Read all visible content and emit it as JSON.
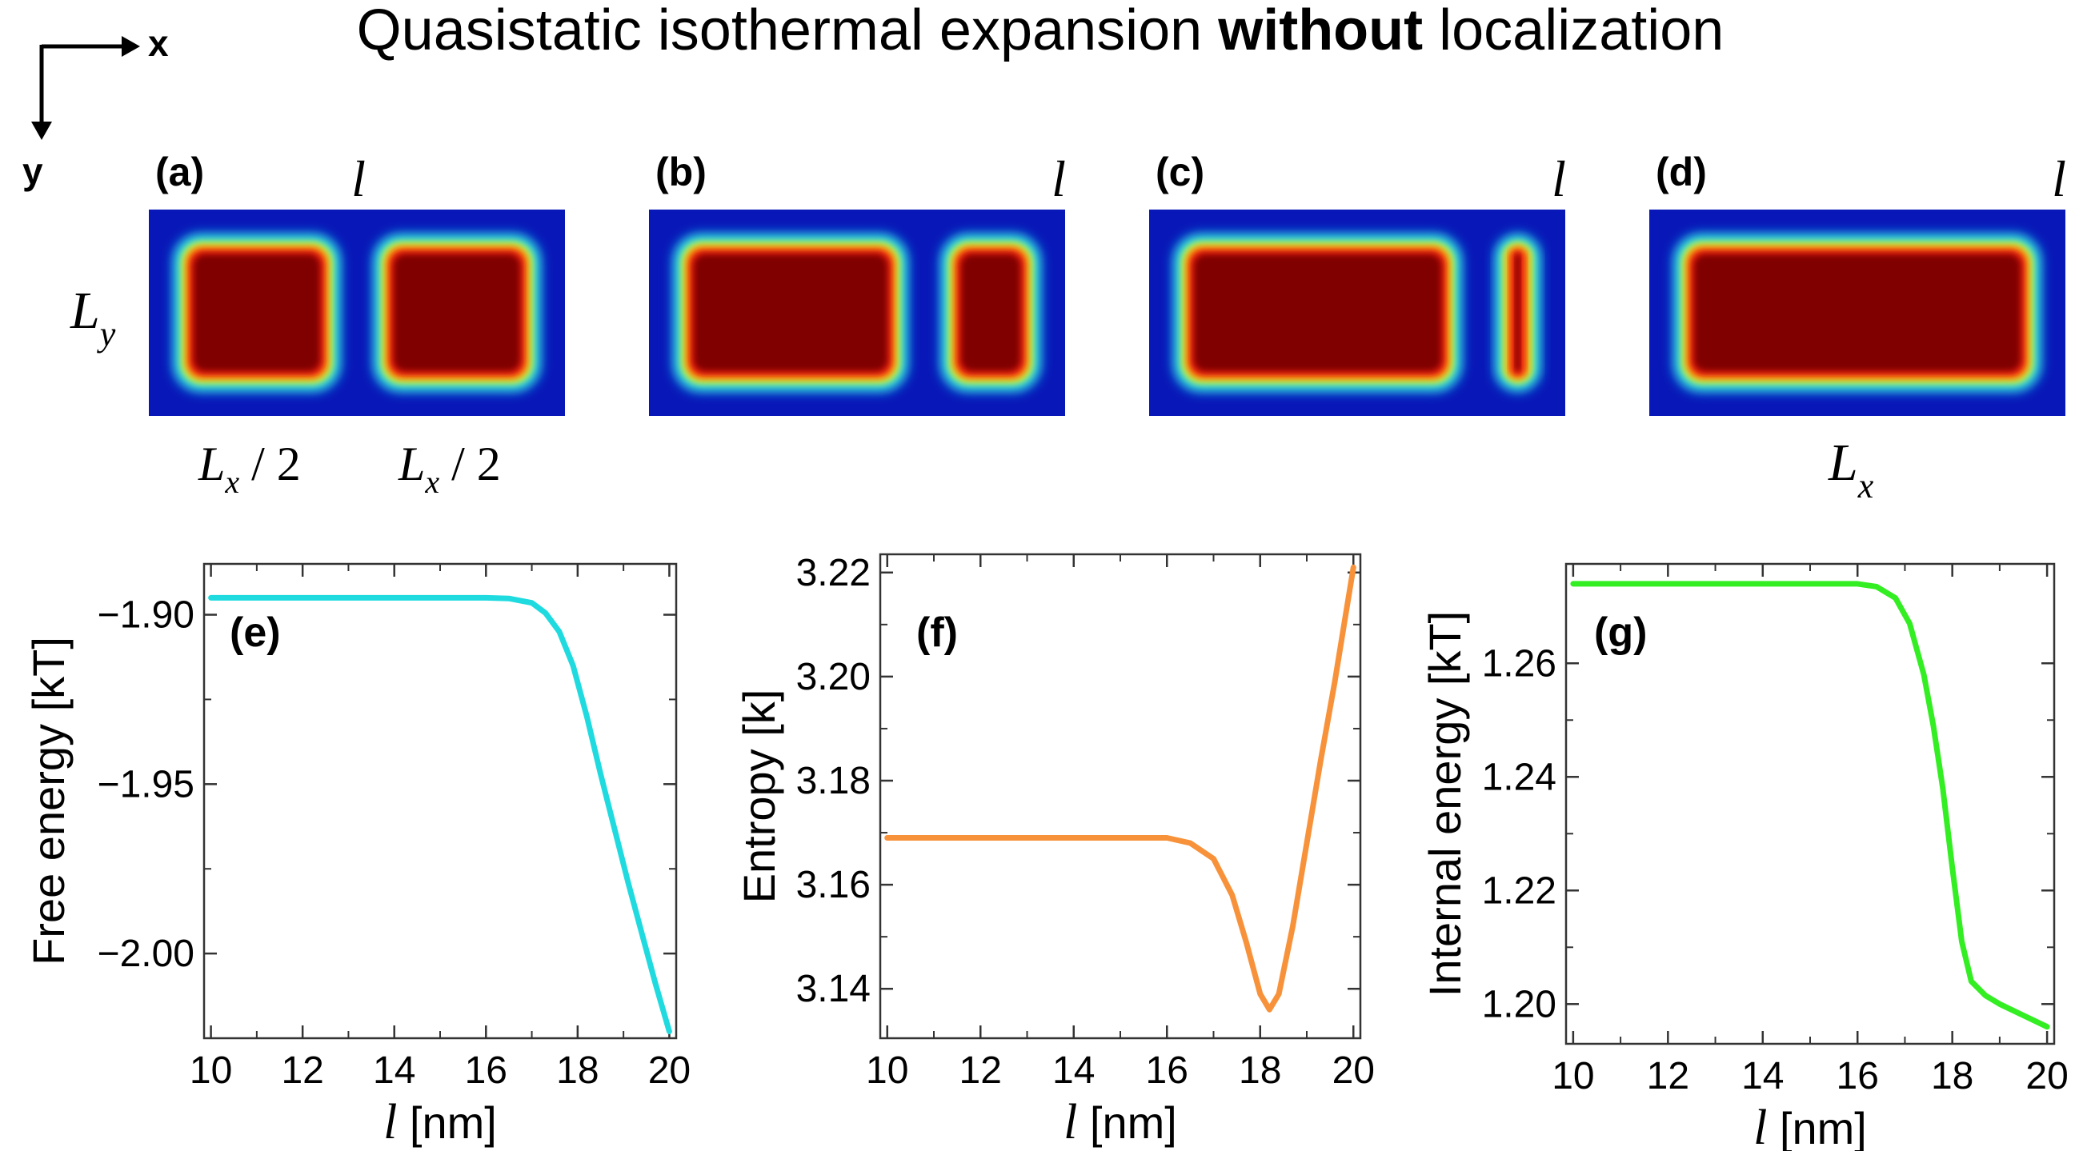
{
  "title": {
    "main": "Quasistatic isothermal expansion ",
    "bold": "without",
    "rest": " localization"
  },
  "axes_indicator": {
    "x": "x",
    "y": "y"
  },
  "panels": [
    {
      "label": "(a)",
      "right_fraction": 0.5
    },
    {
      "label": "(b)",
      "right_fraction": 0.3
    },
    {
      "label": "(c)",
      "right_fraction": 0.14
    },
    {
      "label": "(d)",
      "right_fraction": 0.0
    }
  ],
  "gap_label": "l",
  "ly_label": {
    "main": "L",
    "sub": "y"
  },
  "lx_half_label": {
    "main": "L",
    "sub": "x",
    "suffix": " / 2"
  },
  "lx_label": {
    "main": "L",
    "sub": "x"
  },
  "colors": {
    "free_energy": "#1fdbe0",
    "entropy": "#f7923a",
    "internal_energy": "#33ee22",
    "map_outer": "#0818b8",
    "map_core": "#800000"
  },
  "chart_data": [
    {
      "type": "line",
      "panel_label": "(e)",
      "xlabel_symbol": "l",
      "xlabel_unit": " [nm]",
      "ylabel": "Free energy [kT]",
      "xlim": [
        9.85,
        20.15
      ],
      "ylim": [
        -2.025,
        -1.885
      ],
      "xticks": [
        10,
        12,
        14,
        16,
        18,
        20
      ],
      "yticks": [
        -1.9,
        -1.95,
        -2.0
      ],
      "ytick_labels": [
        "−1.90",
        "−1.95",
        "−2.00"
      ],
      "series": [
        {
          "x": [
            10,
            11,
            12,
            13,
            14,
            15,
            16,
            16.5,
            17,
            17.3,
            17.6,
            17.9,
            18.2,
            18.5,
            18.8,
            19.1,
            19.4,
            19.7,
            20
          ],
          "y": [
            -1.895,
            -1.895,
            -1.895,
            -1.895,
            -1.895,
            -1.895,
            -1.895,
            -1.8952,
            -1.8965,
            -1.8995,
            -1.905,
            -1.915,
            -1.93,
            -1.947,
            -1.963,
            -1.979,
            -1.994,
            -2.009,
            -2.023
          ]
        }
      ]
    },
    {
      "type": "line",
      "panel_label": "(f)",
      "xlabel_symbol": "l",
      "xlabel_unit": " [nm]",
      "ylabel": "Entropy [k]",
      "xlim": [
        9.85,
        20.15
      ],
      "ylim": [
        3.1305,
        3.2235
      ],
      "xticks": [
        10,
        12,
        14,
        16,
        18,
        20
      ],
      "yticks": [
        3.14,
        3.16,
        3.18,
        3.2,
        3.22
      ],
      "ytick_labels": [
        "3.14",
        "3.16",
        "3.18",
        "3.20",
        "3.22"
      ],
      "series": [
        {
          "x": [
            10,
            12,
            14,
            16,
            16.5,
            17,
            17.4,
            17.7,
            18,
            18.2,
            18.4,
            18.7,
            19,
            19.3,
            19.6,
            19.8,
            20
          ],
          "y": [
            3.169,
            3.169,
            3.169,
            3.169,
            3.168,
            3.165,
            3.158,
            3.149,
            3.139,
            3.136,
            3.139,
            3.152,
            3.168,
            3.184,
            3.199,
            3.21,
            3.221
          ]
        }
      ]
    },
    {
      "type": "line",
      "panel_label": "(g)",
      "xlabel_symbol": "l",
      "xlabel_unit": " [nm]",
      "ylabel": "Internal energy [kT]",
      "xlim": [
        9.85,
        20.15
      ],
      "ylim": [
        1.193,
        1.2775
      ],
      "xticks": [
        10,
        12,
        14,
        16,
        18,
        20
      ],
      "yticks": [
        1.2,
        1.22,
        1.24,
        1.26
      ],
      "ytick_labels": [
        "1.20",
        "1.22",
        "1.24",
        "1.26"
      ],
      "series": [
        {
          "x": [
            10,
            12,
            14,
            16,
            16.4,
            16.8,
            17.1,
            17.4,
            17.6,
            17.8,
            18,
            18.2,
            18.4,
            18.7,
            19,
            19.5,
            20
          ],
          "y": [
            1.274,
            1.274,
            1.274,
            1.274,
            1.2735,
            1.2715,
            1.267,
            1.258,
            1.249,
            1.238,
            1.224,
            1.211,
            1.204,
            1.2015,
            1.2,
            1.198,
            1.196
          ]
        }
      ]
    }
  ]
}
